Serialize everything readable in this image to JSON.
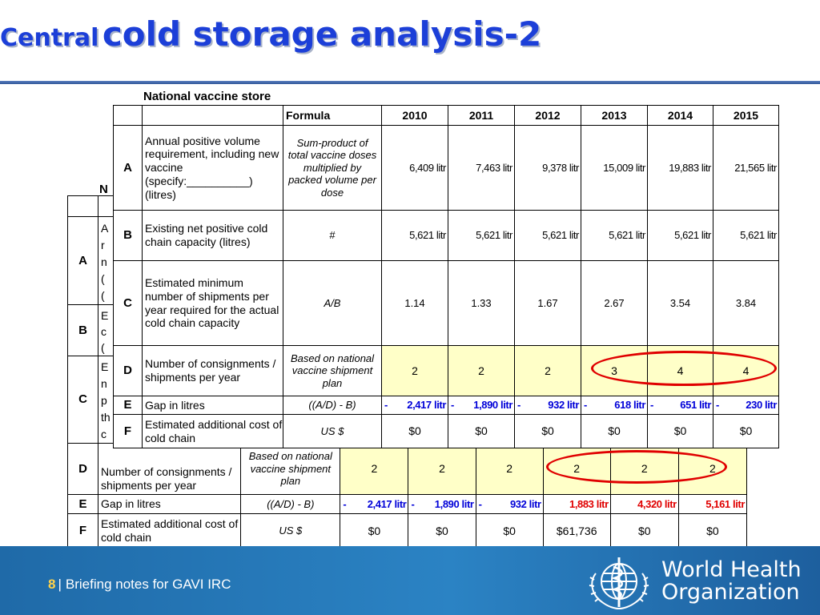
{
  "slide": {
    "title_prefix": "Central",
    "title_main": "cold storage analysis-2"
  },
  "back_table": {
    "heading": "N",
    "rows": {
      "A": {
        "id": "A",
        "desc_fragment": [
          "A",
          "r",
          "n",
          "(",
          "("
        ]
      },
      "B": {
        "id": "B",
        "desc_fragment": [
          "E",
          "c",
          "("
        ]
      },
      "C": {
        "id": "C",
        "desc_fragment": [
          "E",
          "n",
          "p",
          "th",
          "c"
        ]
      },
      "D": {
        "id": "D",
        "desc": "Number of consignments / shipments per year",
        "formula": "Based on national vaccine shipment plan",
        "values": [
          "2",
          "2",
          "2",
          "2",
          "2",
          "2"
        ]
      },
      "E": {
        "id": "E",
        "desc": "Gap in litres",
        "formula": "((A/D) - B)",
        "values": [
          "2,417 litr",
          "1,890 litr",
          "932 litr",
          "1,883 litr",
          "4,320 litr",
          "5,161 litr"
        ],
        "signs": [
          "-",
          "-",
          "-",
          "",
          "",
          ""
        ]
      },
      "F": {
        "id": "F",
        "desc": "Estimated additional cost of cold chain",
        "formula": "US $",
        "values": [
          "$0",
          "$0",
          "$0",
          "$61,736",
          "$0",
          "$0"
        ]
      }
    }
  },
  "front_table": {
    "heading": "National vaccine store",
    "header": {
      "formula": "Formula",
      "years": [
        "2010",
        "2011",
        "2012",
        "2013",
        "2014",
        "2015"
      ]
    },
    "rows": {
      "A": {
        "id": "A",
        "desc": "Annual positive volume requirement, including new vaccine (specify:__________) (litres)",
        "formula": "Sum-product of total vaccine doses multiplied by packed volume per dose",
        "values": [
          "6,409 litr",
          "7,463 litr",
          "9,378 litr",
          "15,009 litr",
          "19,883 litr",
          "21,565 litr"
        ]
      },
      "B": {
        "id": "B",
        "desc": "Existing net positive cold chain capacity (litres)",
        "formula": "#",
        "values": [
          "5,621 litr",
          "5,621 litr",
          "5,621 litr",
          "5,621 litr",
          "5,621 litr",
          "5,621 litr"
        ]
      },
      "C": {
        "id": "C",
        "desc": "Estimated minimum number of shipments per year required for the actual cold chain capacity",
        "formula": "A/B",
        "values": [
          "1.14",
          "1.33",
          "1.67",
          "2.67",
          "3.54",
          "3.84"
        ]
      },
      "D": {
        "id": "D",
        "desc": "Number of consignments / shipments per year",
        "formula": "Based on national vaccine shipment plan",
        "values": [
          "2",
          "2",
          "2",
          "3",
          "4",
          "4"
        ]
      },
      "E": {
        "id": "E",
        "desc": "Gap in litres",
        "formula": "((A/D) - B)",
        "sign": "-",
        "values": [
          "2,417 litr",
          "1,890 litr",
          "932 litr",
          "618 litr",
          "651 litr",
          "230 litr"
        ]
      },
      "F": {
        "id": "F",
        "desc": "Estimated additional cost of cold chain",
        "formula": "US $",
        "values": [
          "$0",
          "$0",
          "$0",
          "$0",
          "$0",
          "$0"
        ]
      }
    }
  },
  "footer": {
    "page_number": "8",
    "separator": "|",
    "text": "Briefing notes for GAVI IRC",
    "org_line1": "World Health",
    "org_line2": "Organization"
  },
  "colors": {
    "title": "#1c3fd8",
    "highlight_row": "#ffffc8",
    "gap_negative": "#0000d8",
    "gap_positive": "#e00000",
    "annotation_oval": "#e00000",
    "footer_bar": "#2b83c4"
  },
  "icons": {
    "logo": "who-emblem-icon"
  }
}
